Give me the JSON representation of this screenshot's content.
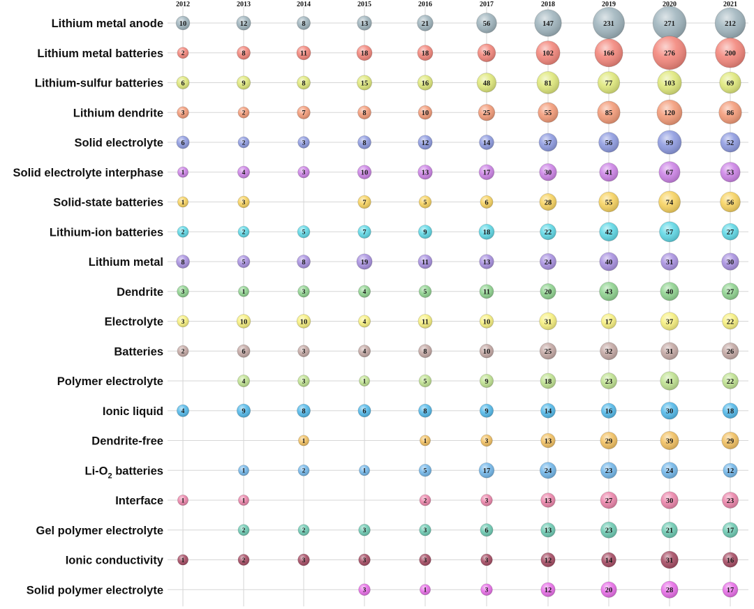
{
  "chart_data": {
    "type": "bubble",
    "years": [
      "2012",
      "2013",
      "2014",
      "2015",
      "2016",
      "2017",
      "2018",
      "2019",
      "2020",
      "2021"
    ],
    "series": [
      {
        "name": "Lithium metal anode",
        "color": "#9fb4bd",
        "values": [
          10,
          12,
          8,
          13,
          21,
          56,
          147,
          231,
          271,
          212
        ]
      },
      {
        "name": "Lithium metal batteries",
        "color": "#f3857a",
        "values": [
          2,
          8,
          11,
          18,
          18,
          36,
          102,
          166,
          276,
          200
        ]
      },
      {
        "name": "Lithium-sulfur batteries",
        "color": "#dfe87a",
        "values": [
          6,
          9,
          8,
          15,
          16,
          48,
          81,
          77,
          103,
          69
        ]
      },
      {
        "name": "Lithium dendrite",
        "color": "#f39a77",
        "values": [
          3,
          2,
          7,
          8,
          10,
          25,
          55,
          85,
          120,
          86
        ]
      },
      {
        "name": "Solid electrolyte",
        "color": "#8d9ae0",
        "values": [
          6,
          2,
          3,
          8,
          12,
          14,
          37,
          56,
          99,
          52
        ]
      },
      {
        "name": "Solid electrolyte interphase",
        "color": "#cc82e6",
        "values": [
          1,
          4,
          3,
          10,
          13,
          17,
          30,
          41,
          67,
          53
        ]
      },
      {
        "name": "Solid-state batteries",
        "color": "#f7d25e",
        "values": [
          1,
          3,
          null,
          7,
          5,
          6,
          28,
          55,
          74,
          56
        ]
      },
      {
        "name": "Lithium-ion batteries",
        "color": "#5ed8e6",
        "values": [
          2,
          2,
          5,
          7,
          9,
          18,
          22,
          42,
          57,
          27
        ]
      },
      {
        "name": "Lithium metal",
        "color": "#a890e0",
        "values": [
          8,
          5,
          8,
          19,
          11,
          13,
          24,
          40,
          31,
          30
        ]
      },
      {
        "name": "Dendrite",
        "color": "#8fd38f",
        "values": [
          3,
          1,
          3,
          4,
          5,
          11,
          20,
          43,
          40,
          27
        ]
      },
      {
        "name": "Electrolyte",
        "color": "#f7f07e",
        "values": [
          3,
          10,
          10,
          4,
          11,
          10,
          31,
          17,
          37,
          22
        ]
      },
      {
        "name": "Batteries",
        "color": "#c4a8a4",
        "values": [
          2,
          6,
          3,
          4,
          8,
          10,
          25,
          32,
          31,
          26
        ]
      },
      {
        "name": "Polymer electrolyte",
        "color": "#bfe290",
        "values": [
          null,
          4,
          3,
          1,
          5,
          9,
          18,
          23,
          41,
          22
        ]
      },
      {
        "name": "Ionic liquid",
        "color": "#52b9ea",
        "values": [
          4,
          9,
          8,
          6,
          8,
          9,
          14,
          16,
          30,
          18
        ]
      },
      {
        "name": "Dendrite-free",
        "color": "#f2c060",
        "values": [
          null,
          null,
          1,
          null,
          1,
          3,
          13,
          29,
          39,
          29
        ]
      },
      {
        "name": "Li-O2 batteries",
        "color": "#72b7ea",
        "values": [
          null,
          1,
          2,
          1,
          5,
          17,
          24,
          23,
          24,
          12
        ]
      },
      {
        "name": "Interface",
        "color": "#ec84aa",
        "values": [
          1,
          1,
          null,
          null,
          2,
          3,
          13,
          27,
          30,
          23
        ]
      },
      {
        "name": "Gel polymer electrolyte",
        "color": "#6ccab2",
        "values": [
          null,
          2,
          2,
          3,
          3,
          6,
          13,
          23,
          21,
          17
        ]
      },
      {
        "name": "Ionic conductivity",
        "color": "#a54a62",
        "values": [
          1,
          2,
          3,
          3,
          3,
          3,
          12,
          14,
          31,
          16
        ]
      },
      {
        "name": "Solid polymer electrolyte",
        "color": "#e86de8",
        "values": [
          null,
          null,
          null,
          3,
          1,
          3,
          12,
          20,
          28,
          17
        ]
      }
    ],
    "legend": "none",
    "grid": true
  }
}
